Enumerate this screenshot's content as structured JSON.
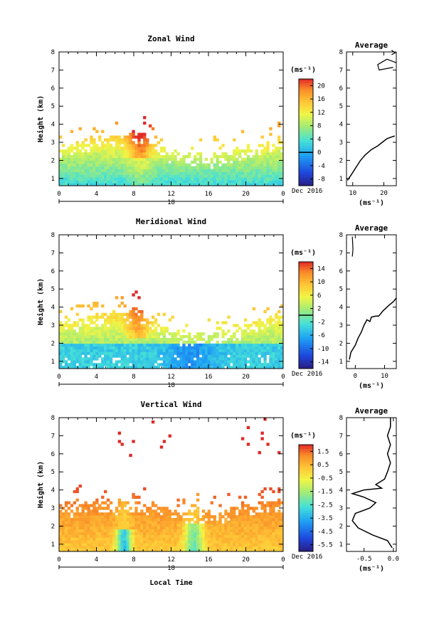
{
  "chart_data": [
    {
      "type": "heatmap",
      "title": "Zonal Wind",
      "ylabel": "Height (km)",
      "xticks": [
        "0",
        "4",
        "8",
        "12",
        "16",
        "20",
        "0"
      ],
      "yticks": [
        "1",
        "2",
        "3",
        "4",
        "5",
        "6",
        "7",
        "8"
      ],
      "date_day": "18",
      "date_label": "Dec 2016",
      "xlim": [
        0,
        24
      ],
      "ylim": [
        0.6,
        8
      ],
      "colorbar": {
        "unit": "(ms⁻¹)",
        "ticks": [
          "20",
          "16",
          "12",
          "8",
          "4",
          "0",
          "-4",
          "-8"
        ],
        "range": [
          -10,
          22
        ],
        "zero_line": true
      },
      "field": {
        "top_base": 2.5,
        "top_amp": 0.5,
        "hot_x": 8.5,
        "hot_amp": 14
      },
      "profile": {
        "title": "Average",
        "xticks": [
          "10",
          "20"
        ],
        "xlim": [
          8,
          24
        ],
        "xlabel": "(ms⁻¹)",
        "points": [
          [
            8.3,
            0.9
          ],
          [
            9.5,
            1.2
          ],
          [
            11,
            1.6
          ],
          [
            12.5,
            2
          ],
          [
            14,
            2.3
          ],
          [
            16,
            2.6
          ],
          [
            18,
            2.8
          ],
          [
            19.5,
            3
          ],
          [
            21,
            3.2
          ],
          [
            22.5,
            3.3
          ],
          [
            23.5,
            3.35
          ]
        ],
        "upper": [
          [
            24,
            7.4
          ],
          [
            21,
            7.6
          ],
          [
            18,
            7.3
          ],
          [
            18.5,
            7.0
          ],
          [
            23,
            7.15
          ]
        ],
        "top_mark": [
          [
            22.5,
            8.1
          ],
          [
            23.6,
            7.95
          ],
          [
            22.5,
            7.85
          ]
        ]
      }
    },
    {
      "type": "heatmap",
      "title": "Meridional Wind",
      "ylabel": "Height (km)",
      "xticks": [
        "0",
        "4",
        "8",
        "12",
        "16",
        "20",
        "0"
      ],
      "yticks": [
        "1",
        "2",
        "3",
        "4",
        "5",
        "6",
        "7",
        "8"
      ],
      "date_day": "18",
      "date_label": "Dec 2016",
      "xlim": [
        0,
        24
      ],
      "ylim": [
        0.6,
        8
      ],
      "colorbar": {
        "unit": "(ms⁻¹)",
        "ticks": [
          "14",
          "10",
          "6",
          "2",
          "-2",
          "-6",
          "-10",
          "-14"
        ],
        "range": [
          -16,
          16
        ],
        "zero_line": true
      },
      "field": {
        "top_base": 2.8,
        "top_amp": 0.6,
        "hot_x": 8.5,
        "hot_amp": 10
      },
      "profile": {
        "title": "Average",
        "xticks": [
          "0",
          "10"
        ],
        "xlim": [
          -3,
          14
        ],
        "xlabel": "(ms⁻¹)",
        "points": [
          [
            -2,
            1.1
          ],
          [
            -1.5,
            1.5
          ],
          [
            0,
            1.9
          ],
          [
            1,
            2.3
          ],
          [
            2,
            2.6
          ],
          [
            3,
            3
          ],
          [
            4,
            3.3
          ],
          [
            5,
            3.2
          ],
          [
            5.5,
            3.45
          ],
          [
            7,
            3.5
          ],
          [
            8,
            3.5
          ],
          [
            9.5,
            3.8
          ],
          [
            11.5,
            4.1
          ],
          [
            13,
            4.3
          ],
          [
            14,
            4.5
          ]
        ],
        "upper": [
          [
            -1,
            7.9
          ],
          [
            -0.8,
            7.2
          ],
          [
            -1,
            6.8
          ]
        ],
        "top_mark": []
      }
    },
    {
      "type": "heatmap",
      "title": "Vertical Wind",
      "ylabel": "Height (km)",
      "xlabel": "Local Time",
      "xticks": [
        "0",
        "4",
        "8",
        "12",
        "16",
        "20",
        "0"
      ],
      "yticks": [
        "1",
        "2",
        "3",
        "4",
        "5",
        "6",
        "7",
        "8"
      ],
      "date_day": "18",
      "date_label": "Dec 2016",
      "xlim": [
        0,
        24
      ],
      "ylim": [
        0.6,
        8
      ],
      "colorbar": {
        "unit": "(ms⁻¹)",
        "ticks": [
          "1.5",
          "0.5",
          "-0.5",
          "-1.5",
          "-2.5",
          "-3.5",
          "-4.5",
          "-5.5"
        ],
        "range": [
          -6,
          2
        ],
        "zero_line": false
      },
      "field": {
        "top_base": 2.9,
        "top_amp": 0.3,
        "hot_x": 8.5,
        "hot_amp": 1
      },
      "profile": {
        "title": "Average",
        "xticks": [
          "-0.5",
          "0.0"
        ],
        "xlim": [
          -0.8,
          0.05
        ],
        "xlabel": "(ms⁻¹)",
        "points": [
          [
            -0.02,
            0.8
          ],
          [
            -0.1,
            1.2
          ],
          [
            -0.35,
            1.5
          ],
          [
            -0.6,
            1.9
          ],
          [
            -0.7,
            2.3
          ],
          [
            -0.65,
            2.7
          ],
          [
            -0.4,
            3
          ],
          [
            -0.3,
            3.3
          ],
          [
            -0.5,
            3.6
          ],
          [
            -0.7,
            3.8
          ],
          [
            -0.5,
            4.0
          ],
          [
            -0.2,
            4.1
          ],
          [
            -0.3,
            4.3
          ],
          [
            -0.15,
            4.6
          ],
          [
            -0.1,
            5
          ],
          [
            -0.05,
            5.5
          ],
          [
            -0.1,
            6
          ],
          [
            -0.05,
            6.5
          ],
          [
            -0.1,
            7
          ],
          [
            -0.05,
            7.5
          ],
          [
            -0.05,
            8
          ]
        ],
        "upper": [],
        "top_mark": []
      }
    }
  ]
}
